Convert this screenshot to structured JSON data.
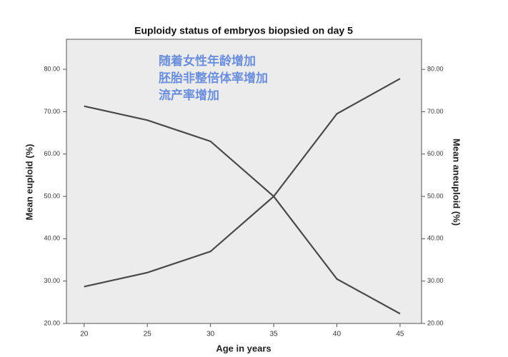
{
  "chart_data": {
    "type": "line",
    "title": "Euploidy status of embryos biopsied on day 5",
    "x_label": "Age in years",
    "annotations": [
      "随着女性年龄增加",
      "胚胎非整倍体率增加",
      "流产率增加"
    ],
    "x": [
      20,
      25,
      30,
      35,
      40,
      45
    ],
    "series": [
      {
        "name": "Mean euploid (%)",
        "color": "#4a4a4a",
        "values": [
          71.3,
          68,
          63,
          50,
          30.5,
          22.3
        ]
      },
      {
        "name": "Mean aneuploid (%)",
        "color": "#4a4a4a",
        "axis": "y2",
        "values": [
          28.7,
          32,
          37,
          50,
          69.5,
          77.8
        ]
      }
    ],
    "xlim": [
      18.6,
      46.7
    ],
    "xticks": [
      20,
      25,
      30,
      35,
      40,
      45
    ],
    "ylim": [
      20,
      87.1
    ],
    "yticks": [
      {
        "value": 20,
        "label": "20.00"
      },
      {
        "value": 30,
        "label": "30.00"
      },
      {
        "value": 40,
        "label": "40.00"
      },
      {
        "value": 50,
        "label": "50.00"
      },
      {
        "value": 60,
        "label": "60.00"
      },
      {
        "value": 70,
        "label": "70.00"
      },
      {
        "value": 80,
        "label": "80.00"
      }
    ],
    "y2lim": [
      20,
      87.1
    ],
    "y2ticks": [
      {
        "value": 20,
        "label": "20.00"
      },
      {
        "value": 30,
        "label": "30.00"
      },
      {
        "value": 40,
        "label": "40.00"
      },
      {
        "value": 50,
        "label": "50.00"
      },
      {
        "value": 60,
        "label": "60.00"
      },
      {
        "value": 70,
        "label": "70.00"
      },
      {
        "value": 80,
        "label": "80.00"
      }
    ],
    "annotation_color": "#6b8fdc",
    "plot_background": "#ececec"
  }
}
